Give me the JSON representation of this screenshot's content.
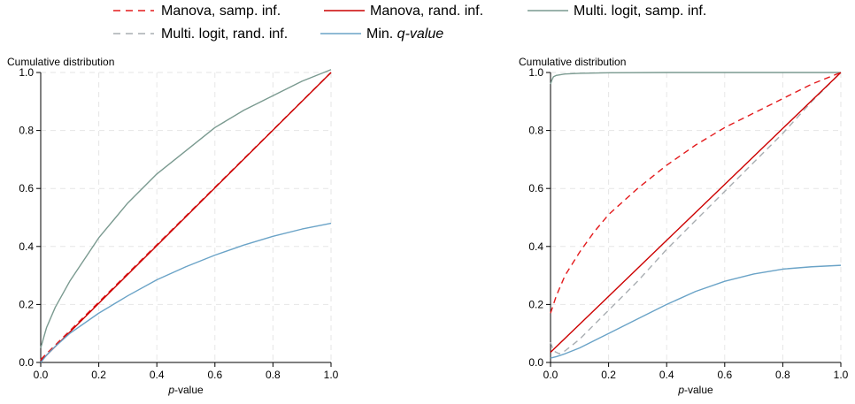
{
  "legend": {
    "entries": [
      {
        "label": "Manova, samp. inf.",
        "color": "#e31a1c",
        "dash": "dashed"
      },
      {
        "label": "Manova, rand. inf.",
        "color": "#cc0000",
        "dash": "solid"
      },
      {
        "label": "Multi. logit, samp. inf.",
        "color": "#7a9a90",
        "dash": "solid"
      },
      {
        "label": "Multi. logit, rand. inf.",
        "color": "#a9aeb2",
        "dash": "dashed"
      },
      {
        "label_prefix": "Min. ",
        "label_emph": "q-value",
        "color": "#6aa3c7",
        "dash": "solid"
      }
    ]
  },
  "chart_data": [
    {
      "type": "line",
      "ylabel": "Cumulative distribution",
      "xlabel_emph": "p",
      "xlabel_rest": "-value",
      "xlim": [
        0,
        1
      ],
      "ylim": [
        0,
        1
      ],
      "xticks": [
        "0.0",
        "0.2",
        "0.4",
        "0.6",
        "0.8",
        "1.0"
      ],
      "yticks": [
        "0.0",
        "0.2",
        "0.4",
        "0.6",
        "0.8",
        "1.0"
      ],
      "grid": true,
      "series": [
        {
          "name": "Multi. logit, samp. inf.",
          "color": "#7a9a90",
          "dash": "solid",
          "x": [
            0,
            0.02,
            0.05,
            0.1,
            0.2,
            0.3,
            0.4,
            0.5,
            0.6,
            0.7,
            0.8,
            0.9,
            1.0
          ],
          "y": [
            0.05,
            0.12,
            0.19,
            0.28,
            0.43,
            0.55,
            0.65,
            0.73,
            0.81,
            0.87,
            0.92,
            0.97,
            1.01
          ]
        },
        {
          "name": "Multi. logit, rand. inf.",
          "color": "#a9aeb2",
          "dash": "dashed",
          "x": [
            0,
            0.2,
            0.4,
            0.6,
            0.8,
            1.0
          ],
          "y": [
            0.01,
            0.208,
            0.406,
            0.604,
            0.802,
            1.0
          ]
        },
        {
          "name": "Manova, samp. inf.",
          "color": "#e31a1c",
          "dash": "dashed",
          "x": [
            0,
            0.2,
            0.4,
            0.6,
            0.8,
            1.0
          ],
          "y": [
            0.01,
            0.208,
            0.406,
            0.604,
            0.802,
            1.0
          ]
        },
        {
          "name": "Manova, rand. inf.",
          "color": "#cc0000",
          "dash": "solid",
          "x": [
            0,
            0.2,
            0.4,
            0.6,
            0.8,
            1.0
          ],
          "y": [
            0.005,
            0.204,
            0.403,
            0.602,
            0.801,
            1.0
          ]
        },
        {
          "name": "Min. q-value",
          "color": "#6aa3c7",
          "dash": "solid",
          "x": [
            0,
            0.02,
            0.05,
            0.1,
            0.2,
            0.3,
            0.4,
            0.5,
            0.6,
            0.7,
            0.8,
            0.9,
            1.0
          ],
          "y": [
            0,
            0.025,
            0.055,
            0.1,
            0.17,
            0.23,
            0.285,
            0.33,
            0.37,
            0.405,
            0.435,
            0.46,
            0.48
          ]
        }
      ]
    },
    {
      "type": "line",
      "ylabel": "Cumulative distribution",
      "xlabel_emph": "p",
      "xlabel_rest": "-value",
      "xlim": [
        0,
        1
      ],
      "ylim": [
        0,
        1
      ],
      "xticks": [
        "0.0",
        "0.2",
        "0.4",
        "0.6",
        "0.8",
        "1.0"
      ],
      "yticks": [
        "0.0",
        "0.2",
        "0.4",
        "0.6",
        "0.8",
        "1.0"
      ],
      "grid": true,
      "series": [
        {
          "name": "Multi. logit, samp. inf.",
          "color": "#7a9a90",
          "dash": "solid",
          "x": [
            0,
            0.005,
            0.01,
            0.02,
            0.05,
            0.1,
            0.2,
            0.4,
            0.6,
            0.8,
            1.0
          ],
          "y": [
            0.96,
            0.975,
            0.985,
            0.99,
            0.995,
            0.997,
            0.999,
            1.0,
            1.0,
            1.0,
            1.0
          ]
        },
        {
          "name": "Multi. logit, rand. inf.",
          "color": "#a9aeb2",
          "dash": "dashed",
          "x": [
            0,
            0.01,
            0.03,
            0.05,
            0.1,
            0.2,
            0.3,
            0.4,
            0.5,
            0.6,
            0.7,
            0.8,
            0.9,
            1.0
          ],
          "y": [
            0.07,
            0.04,
            0.03,
            0.04,
            0.08,
            0.18,
            0.28,
            0.39,
            0.49,
            0.59,
            0.69,
            0.79,
            0.9,
            1.0
          ]
        },
        {
          "name": "Manova, samp. inf.",
          "color": "#e31a1c",
          "dash": "dashed",
          "x": [
            0,
            0.02,
            0.05,
            0.1,
            0.15,
            0.2,
            0.3,
            0.4,
            0.5,
            0.6,
            0.7,
            0.8,
            0.9,
            1.0
          ],
          "y": [
            0.17,
            0.23,
            0.3,
            0.38,
            0.45,
            0.51,
            0.6,
            0.68,
            0.75,
            0.81,
            0.86,
            0.91,
            0.96,
            1.0
          ]
        },
        {
          "name": "Manova, rand. inf.",
          "color": "#cc0000",
          "dash": "solid",
          "x": [
            0,
            0.2,
            0.4,
            0.6,
            0.8,
            1.0
          ],
          "y": [
            0.035,
            0.228,
            0.421,
            0.614,
            0.807,
            1.0
          ]
        },
        {
          "name": "Min. q-value",
          "color": "#6aa3c7",
          "dash": "solid",
          "x": [
            0,
            0.02,
            0.05,
            0.1,
            0.2,
            0.3,
            0.4,
            0.5,
            0.6,
            0.7,
            0.8,
            0.9,
            1.0
          ],
          "y": [
            0.015,
            0.02,
            0.03,
            0.05,
            0.1,
            0.15,
            0.2,
            0.245,
            0.28,
            0.305,
            0.322,
            0.33,
            0.335
          ]
        }
      ]
    }
  ]
}
